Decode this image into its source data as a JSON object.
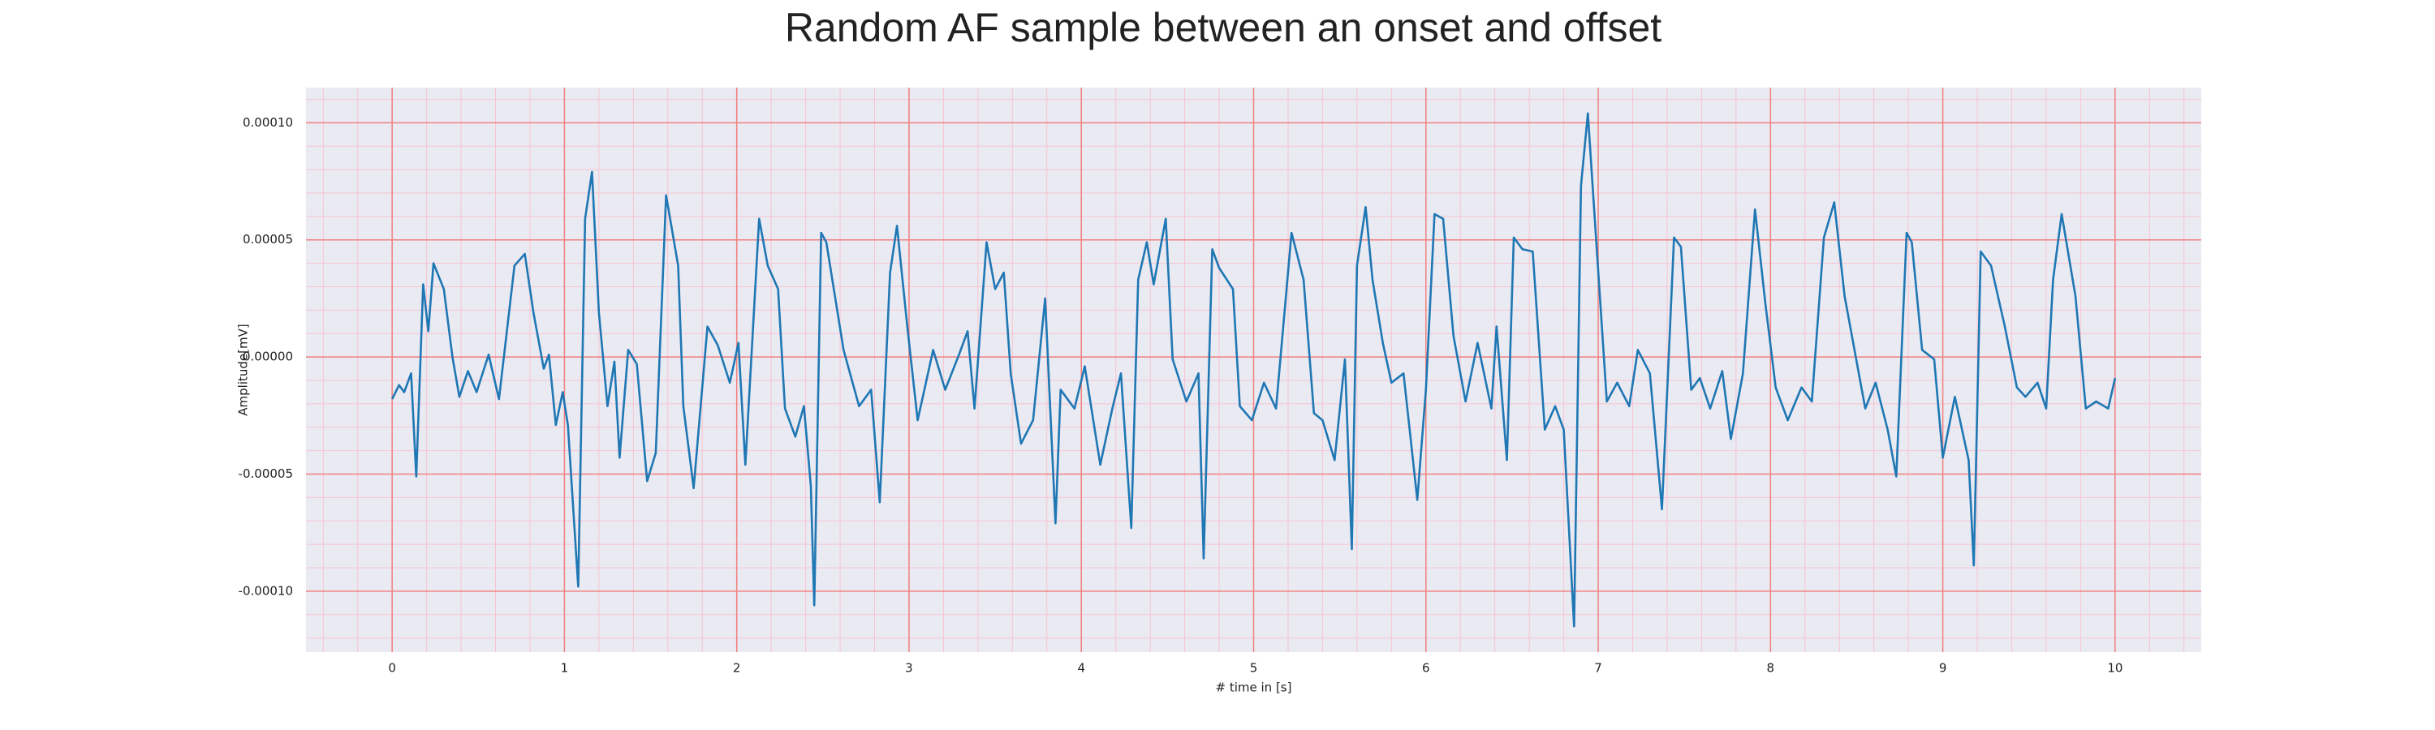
{
  "chart_data": {
    "type": "line",
    "title": "Random AF sample between an onset and offset",
    "xlabel": "# time in [s]",
    "ylabel": "Amplitude[mV]",
    "color": "#1f77b4",
    "grid": true,
    "minor_grid": true,
    "xlim": [
      -0.5,
      10.5
    ],
    "ylim": [
      -0.000126,
      0.000115
    ],
    "xticks": [
      0,
      1,
      2,
      3,
      4,
      5,
      6,
      7,
      8,
      9,
      10
    ],
    "yticks": [
      {
        "value": -0.0001,
        "label": "-0.00010"
      },
      {
        "value": -5e-05,
        "label": "-0.00005"
      },
      {
        "value": 0,
        "label": "0.00000"
      },
      {
        "value": 5e-05,
        "label": "0.00005"
      },
      {
        "value": 0.0001,
        "label": "0.00010"
      }
    ],
    "x": [
      0,
      0.04,
      0.07,
      0.11,
      0.14,
      0.18,
      0.21,
      0.24,
      0.3,
      0.35,
      0.39,
      0.44,
      0.49,
      0.56,
      0.62,
      0.71,
      0.77,
      0.82,
      0.88,
      0.91,
      0.95,
      0.99,
      1.02,
      1.08,
      1.12,
      1.16,
      1.2,
      1.25,
      1.29,
      1.32,
      1.37,
      1.42,
      1.48,
      1.53,
      1.59,
      1.66,
      1.69,
      1.75,
      1.83,
      1.89,
      1.96,
      2.01,
      2.05,
      2.13,
      2.18,
      2.24,
      2.28,
      2.34,
      2.39,
      2.43,
      2.45,
      2.49,
      2.52,
      2.57,
      2.62,
      2.71,
      2.78,
      2.83,
      2.89,
      2.93,
      2.99,
      3.05,
      3.14,
      3.21,
      3.29,
      3.34,
      3.38,
      3.45,
      3.5,
      3.55,
      3.59,
      3.65,
      3.72,
      3.79,
      3.85,
      3.88,
      3.96,
      4.02,
      4.11,
      4.18,
      4.23,
      4.29,
      4.33,
      4.38,
      4.42,
      4.49,
      4.53,
      4.61,
      4.68,
      4.71,
      4.76,
      4.8,
      4.88,
      4.92,
      4.99,
      5.06,
      5.13,
      5.22,
      5.29,
      5.35,
      5.4,
      5.47,
      5.53,
      5.57,
      5.6,
      5.65,
      5.69,
      5.75,
      5.8,
      5.87,
      5.95,
      6.0,
      6.05,
      6.1,
      6.16,
      6.23,
      6.3,
      6.38,
      6.41,
      6.47,
      6.51,
      6.56,
      6.62,
      6.69,
      6.75,
      6.8,
      6.86,
      6.9,
      6.94,
      6.98,
      7.05,
      7.11,
      7.18,
      7.23,
      7.3,
      7.37,
      7.44,
      7.48,
      7.54,
      7.59,
      7.65,
      7.72,
      7.77,
      7.84,
      7.91,
      7.97,
      8.03,
      8.1,
      8.18,
      8.24,
      8.31,
      8.37,
      8.43,
      8.48,
      8.55,
      8.61,
      8.68,
      8.73,
      8.79,
      8.82,
      8.88,
      8.95,
      9.0,
      9.07,
      9.15,
      9.18,
      9.22,
      9.28,
      9.36,
      9.43,
      9.48,
      9.55,
      9.6,
      9.64,
      9.69,
      9.77,
      9.83,
      9.89,
      9.96,
      10.0
    ],
    "values": [
      -1.8e-05,
      -1.2e-05,
      -1.5e-05,
      -7e-06,
      -5.1e-05,
      3.1e-05,
      1.1e-05,
      4e-05,
      2.9e-05,
      0,
      -1.7e-05,
      -6e-06,
      -1.5e-05,
      1e-06,
      -1.8e-05,
      3.9e-05,
      4.4e-05,
      1.9e-05,
      -5e-06,
      1e-06,
      -2.9e-05,
      -1.5e-05,
      -2.9e-05,
      -9.8e-05,
      5.9e-05,
      7.9e-05,
      1.9e-05,
      -2.1e-05,
      -2e-06,
      -4.3e-05,
      3e-06,
      -3e-06,
      -5.3e-05,
      -4.1e-05,
      6.9e-05,
      3.9e-05,
      -2.1e-05,
      -5.6e-05,
      1.3e-05,
      5e-06,
      -1.1e-05,
      6e-06,
      -4.6e-05,
      5.9e-05,
      3.9e-05,
      2.9e-05,
      -2.2e-05,
      -3.4e-05,
      -2.1e-05,
      -5.5e-05,
      -0.000106,
      5.3e-05,
      4.9e-05,
      2.6e-05,
      3e-06,
      -2.1e-05,
      -1.4e-05,
      -6.2e-05,
      3.6e-05,
      5.6e-05,
      1.3e-05,
      -2.7e-05,
      3e-06,
      -1.4e-05,
      1e-06,
      1.1e-05,
      -2.2e-05,
      4.9e-05,
      2.9e-05,
      3.6e-05,
      -7e-06,
      -3.7e-05,
      -2.7e-05,
      2.5e-05,
      -7.1e-05,
      -1.4e-05,
      -2.2e-05,
      -4e-06,
      -4.6e-05,
      -2.2e-05,
      -7e-06,
      -7.3e-05,
      3.3e-05,
      4.9e-05,
      3.1e-05,
      5.9e-05,
      -1e-06,
      -1.9e-05,
      -7e-06,
      -8.6e-05,
      4.6e-05,
      3.8e-05,
      2.9e-05,
      -2.1e-05,
      -2.7e-05,
      -1.1e-05,
      -2.2e-05,
      5.3e-05,
      3.3e-05,
      -2.4e-05,
      -2.7e-05,
      -4.4e-05,
      -1e-06,
      -8.2e-05,
      3.9e-05,
      6.4e-05,
      3.3e-05,
      6e-06,
      -1.1e-05,
      -7e-06,
      -6.1e-05,
      -1.4e-05,
      6.1e-05,
      5.9e-05,
      9e-06,
      -1.9e-05,
      6e-06,
      -2.2e-05,
      1.3e-05,
      -4.4e-05,
      5.1e-05,
      4.6e-05,
      4.5e-05,
      -3.1e-05,
      -2.1e-05,
      -3.1e-05,
      -0.000115,
      7.3e-05,
      0.000104,
      5.9e-05,
      -1.9e-05,
      -1.1e-05,
      -2.1e-05,
      3e-06,
      -7e-06,
      -6.5e-05,
      5.1e-05,
      4.7e-05,
      -1.4e-05,
      -9e-06,
      -2.2e-05,
      -6e-06,
      -3.5e-05,
      -7e-06,
      6.3e-05,
      2.3e-05,
      -1.3e-05,
      -2.7e-05,
      -1.3e-05,
      -1.9e-05,
      5.1e-05,
      6.6e-05,
      2.6e-05,
      6e-06,
      -2.2e-05,
      -1.1e-05,
      -3.1e-05,
      -5.1e-05,
      5.3e-05,
      4.9e-05,
      3e-06,
      -1e-06,
      -4.3e-05,
      -1.7e-05,
      -4.4e-05,
      -8.9e-05,
      4.5e-05,
      3.9e-05,
      1.3e-05,
      -1.3e-05,
      -1.7e-05,
      -1.1e-05,
      -2.2e-05,
      3.3e-05,
      6.1e-05,
      2.6e-05,
      -2.2e-05,
      -1.9e-05,
      -2.2e-05,
      -9e-06
    ]
  }
}
